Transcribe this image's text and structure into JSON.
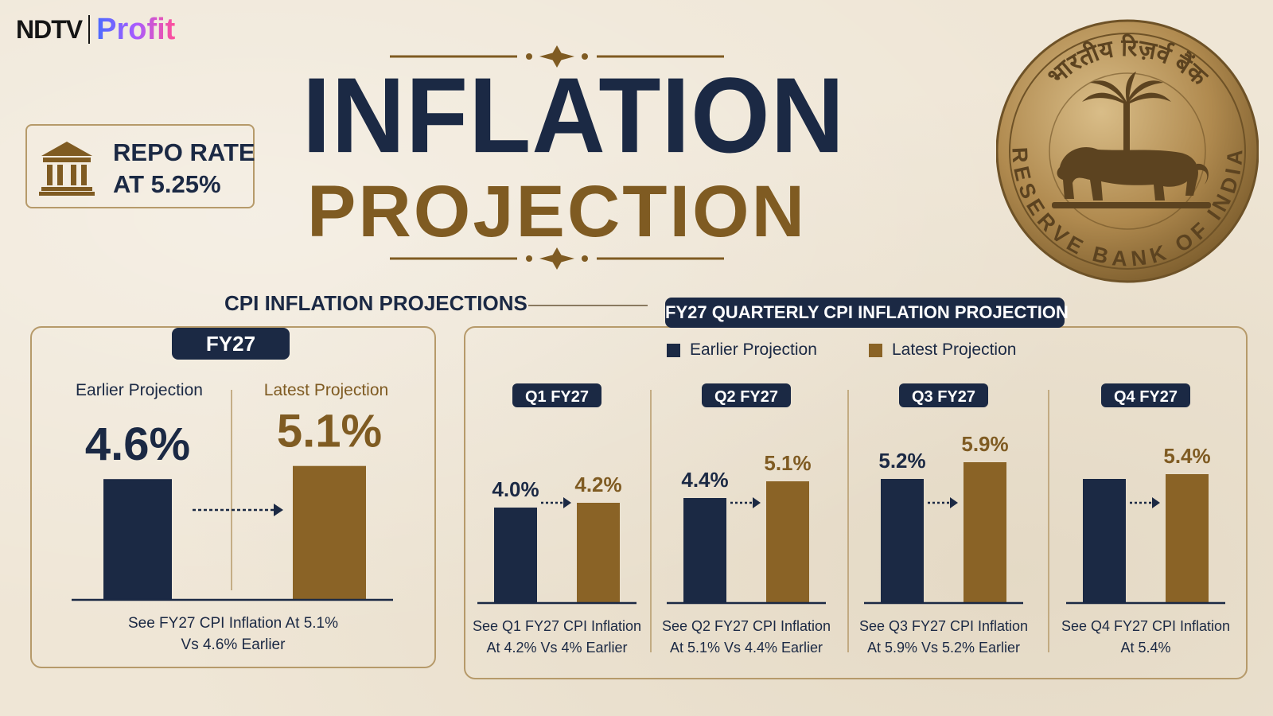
{
  "brand": {
    "part1": "NDTV",
    "part2": "Profit"
  },
  "repo": {
    "line1": "REPO RATE",
    "line2": "AT 5.25%"
  },
  "title": {
    "line1": "INFLATION",
    "line2": "PROJECTION"
  },
  "seal": {
    "top_text": "भारतीय रिज़र्व बैंक",
    "bottom_text": "RESERVE BANK OF INDIA"
  },
  "section": {
    "cpi_heading": "CPI INFLATION PROJECTIONS",
    "quarterly_heading": "FY27 QUARTERLY CPI INFLATION PROJECTION"
  },
  "legend": {
    "earlier": "Earlier Projection",
    "latest": "Latest Projection"
  },
  "colors": {
    "earlier": "#1b2944",
    "latest": "#8a6326",
    "background": "#efe6d6"
  },
  "chart_data": [
    {
      "type": "bar",
      "title": "FY27",
      "categories": [
        "Earlier Projection",
        "Latest Projection"
      ],
      "values": [
        4.6,
        5.1
      ],
      "value_labels": [
        "4.6%",
        "5.1%"
      ],
      "caption": [
        "See FY27 CPI Inflation At 5.1%",
        "Vs 4.6% Earlier"
      ]
    },
    {
      "type": "bar",
      "title": "FY27 QUARTERLY CPI INFLATION PROJECTION",
      "categories": [
        "Q1 FY27",
        "Q2 FY27",
        "Q3 FY27",
        "Q4 FY27"
      ],
      "legend_position": "top",
      "series": [
        {
          "name": "Earlier Projection",
          "values": [
            4.0,
            4.4,
            5.2,
            5.2
          ],
          "labels": [
            "4.0%",
            "4.4%",
            "5.2%",
            ""
          ]
        },
        {
          "name": "Latest Projection",
          "values": [
            4.2,
            5.1,
            5.9,
            5.4
          ],
          "labels": [
            "4.2%",
            "5.1%",
            "5.9%",
            "5.4%"
          ]
        }
      ],
      "captions": [
        [
          "See Q1 FY27 CPI Inflation",
          "At 4.2% Vs 4% Earlier"
        ],
        [
          "See Q2 FY27 CPI Inflation",
          "At 5.1% Vs 4.4% Earlier"
        ],
        [
          "See Q3 FY27 CPI Inflation",
          "At 5.9% Vs 5.2% Earlier"
        ],
        [
          "See Q4 FY27 CPI Inflation",
          "At 5.4%"
        ]
      ]
    }
  ]
}
